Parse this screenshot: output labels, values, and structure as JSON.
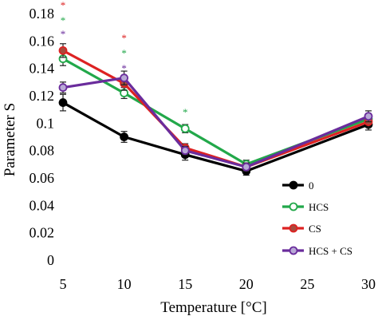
{
  "chart_data": {
    "type": "line",
    "xlabel": "Temperature [°C]",
    "ylabel": "Parameter S",
    "x": [
      5,
      10,
      15,
      20,
      30
    ],
    "xticks": [
      "5",
      "10",
      "15",
      "20",
      "25",
      "30"
    ],
    "yticks": [
      "0",
      "0.02",
      "0.04",
      "0.06",
      "0.08",
      "0.1",
      "0.12",
      "0.14",
      "0.16",
      "0.18"
    ],
    "xlim": [
      5,
      30
    ],
    "ylim": [
      0,
      0.18
    ],
    "grid": false,
    "legend_position": "bottom-right",
    "series": [
      {
        "name": "0",
        "color": "#000000",
        "marker": "filled-circle",
        "values": [
          0.115,
          0.09,
          0.077,
          0.065,
          0.099
        ],
        "errors": [
          0.006,
          0.004,
          0.004,
          0.003,
          0.004
        ]
      },
      {
        "name": "HCS",
        "color": "#22a84a",
        "marker": "open-circle",
        "values": [
          0.147,
          0.122,
          0.096,
          0.07,
          0.103
        ],
        "errors": [
          0.005,
          0.004,
          0.003,
          0.003,
          0.004
        ]
      },
      {
        "name": "CS",
        "color": "#dd2222",
        "marker": "brown-circle",
        "values": [
          0.153,
          0.129,
          0.082,
          0.068,
          0.101
        ],
        "errors": [
          0.005,
          0.005,
          0.003,
          0.003,
          0.004
        ]
      },
      {
        "name": "HCS + CS",
        "color": "#6a2c9c",
        "marker": "lavender-circle",
        "values": [
          0.126,
          0.133,
          0.08,
          0.068,
          0.105
        ],
        "errors": [
          0.004,
          0.005,
          0.003,
          0.003,
          0.004
        ]
      }
    ],
    "annotations": [
      {
        "text": "*",
        "x": 5,
        "y": 0.187,
        "color": "#dd2222"
      },
      {
        "text": "*",
        "x": 5,
        "y": 0.176,
        "color": "#22a84a"
      },
      {
        "text": "*",
        "x": 5,
        "y": 0.166,
        "color": "#6a2c9c"
      },
      {
        "text": "*",
        "x": 10,
        "y": 0.163,
        "color": "#dd2222"
      },
      {
        "text": "*",
        "x": 10,
        "y": 0.152,
        "color": "#22a84a"
      },
      {
        "text": "*",
        "x": 10,
        "y": 0.141,
        "color": "#6a2c9c"
      },
      {
        "text": "*",
        "x": 15,
        "y": 0.109,
        "color": "#22a84a"
      }
    ]
  }
}
